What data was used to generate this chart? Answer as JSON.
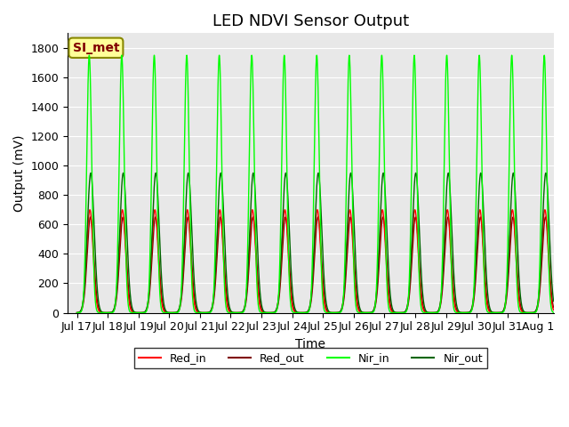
{
  "title": "LED NDVI Sensor Output",
  "xlabel": "Time",
  "ylabel": "Output (mV)",
  "ylim": [
    0,
    1900
  ],
  "yticks": [
    0,
    200,
    400,
    600,
    800,
    1000,
    1200,
    1400,
    1600,
    1800
  ],
  "nir_in_color": "#00FF00",
  "nir_out_color": "#006600",
  "red_in_color": "#FF0000",
  "red_out_color": "#800000",
  "nir_in_peak": 1750,
  "nir_out_peak": 950,
  "red_in_peak": 700,
  "red_out_peak": 650,
  "bg_color": "#E8E8E8",
  "fig_bg_color": "#FFFFFF",
  "legend_label": "SI_met",
  "legend_bg": "#FFFF99",
  "legend_text_color": "#800000",
  "title_fontsize": 13,
  "axis_label_fontsize": 10,
  "tick_fontsize": 9
}
